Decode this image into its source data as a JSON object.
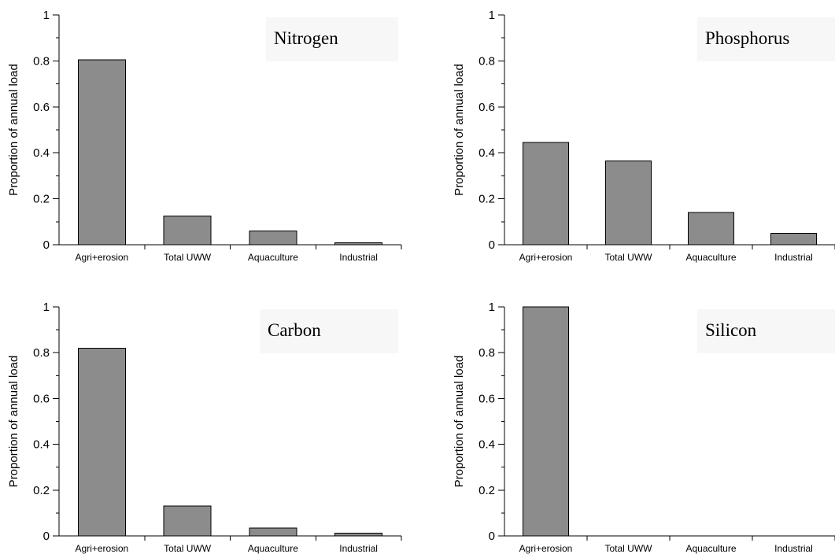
{
  "chart_data": [
    {
      "type": "bar",
      "title": "Nitrogen",
      "ylabel": "Proportion of annual load",
      "xlabel": "",
      "ylim": [
        0,
        1
      ],
      "yticks": [
        "0",
        "0.2",
        "0.4",
        "0.6",
        "0.8",
        "1"
      ],
      "categories": [
        "Agri+erosion",
        "Total UWW",
        "Aquaculture",
        "Industrial"
      ],
      "values": [
        0.805,
        0.125,
        0.06,
        0.008
      ],
      "bar_color": "#8c8c8c"
    },
    {
      "type": "bar",
      "title": "Phosphorus",
      "ylabel": "Proportion of annual load",
      "xlabel": "",
      "ylim": [
        0,
        1
      ],
      "yticks": [
        "0",
        "0.2",
        "0.4",
        "0.6",
        "0.8",
        "1"
      ],
      "categories": [
        "Agri+erosion",
        "Total UWW",
        "Aquaculture",
        "Industrial"
      ],
      "values": [
        0.445,
        0.365,
        0.14,
        0.05
      ],
      "bar_color": "#8c8c8c"
    },
    {
      "type": "bar",
      "title": "Carbon",
      "ylabel": "Proportion of annual load",
      "xlabel": "",
      "ylim": [
        0,
        1
      ],
      "yticks": [
        "0",
        "0.2",
        "0.4",
        "0.6",
        "0.8",
        "1"
      ],
      "categories": [
        "Agri+erosion",
        "Total UWW",
        "Aquaculture",
        "Industrial"
      ],
      "values": [
        0.82,
        0.13,
        0.035,
        0.012
      ],
      "bar_color": "#8c8c8c"
    },
    {
      "type": "bar",
      "title": "Silicon",
      "ylabel": "Proportion of annual load",
      "xlabel": "",
      "ylim": [
        0,
        1
      ],
      "yticks": [
        "0",
        "0.2",
        "0.4",
        "0.6",
        "0.8",
        "1"
      ],
      "categories": [
        "Agri+erosion",
        "Total UWW",
        "Aquaculture",
        "Industrial"
      ],
      "values": [
        1.0,
        0.0,
        0.0,
        0.0
      ],
      "bar_color": "#8c8c8c"
    }
  ]
}
